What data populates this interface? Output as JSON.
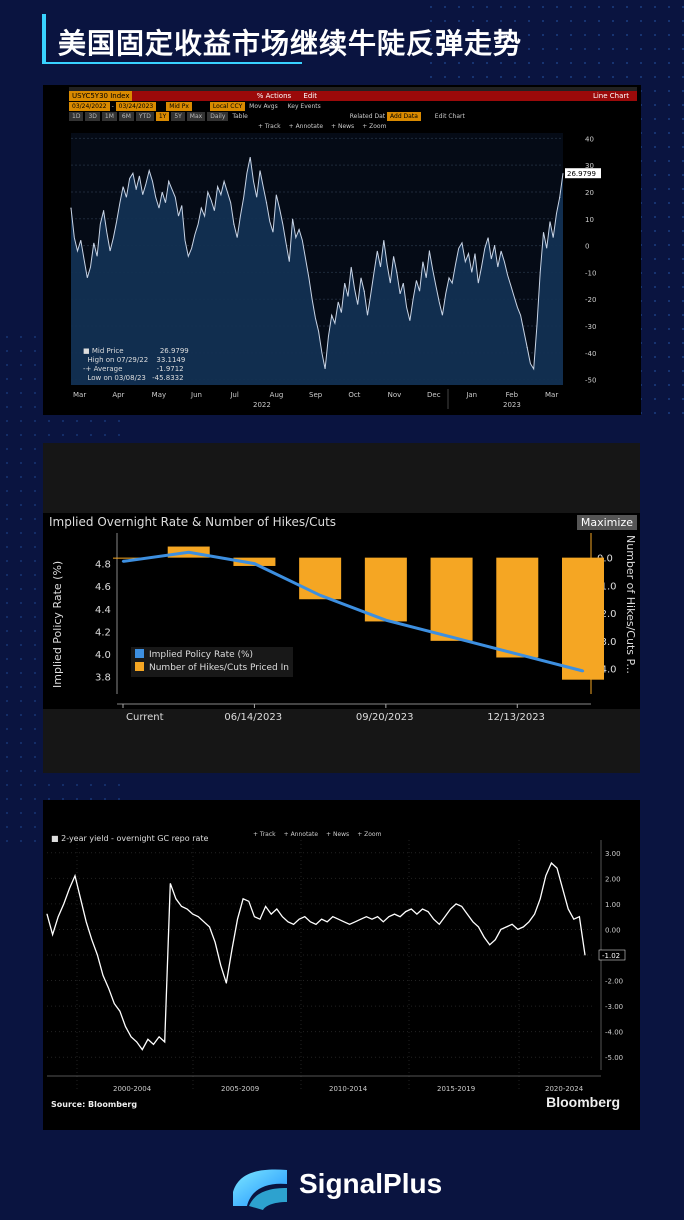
{
  "title": "美国固定收益市场继续牛陡反弹走势",
  "brand": "SignalPlus",
  "panel1": {
    "ticker": "USYC5Y30 Index",
    "actions": "% Actions",
    "edit": "Edit",
    "view": "Line Chart",
    "date_from": "03/24/2022",
    "date_to": "03/24/2023",
    "field": "Mid Px",
    "ccy": "Local CCY",
    "mov_avgs": "Mov Avgs",
    "key_events": "Key Events",
    "periods": [
      "1D",
      "3D",
      "1M",
      "6M",
      "YTD",
      "1Y",
      "5Y",
      "Max",
      "Daily"
    ],
    "table": "Table",
    "related": "Related Dat",
    "add_data": "Add Data",
    "edit_chart": "Edit Chart",
    "tools": [
      "Track",
      "Annotate",
      "News",
      "Zoom"
    ],
    "legend": {
      "mid": "Mid Price",
      "mid_val": "26.9799",
      "high": "High on 07/29/22",
      "high_val": "33.1149",
      "avg": "Average",
      "avg_val": "-1.9712",
      "low": "Low on 03/08/23",
      "low_val": "-45.8332"
    },
    "last_label": "26.9799",
    "years": [
      "2022",
      "2023"
    ]
  },
  "panel2": {
    "header": "Implied Overnight Rate & Number of Hikes/Cuts",
    "maximize": "Maximize",
    "ylabel_left": "Implied Policy Rate (%)",
    "ylabel_right": "Number of Hikes/Cuts P...",
    "legend_line": "Implied Policy Rate (%)",
    "legend_bar": "Number of Hikes/Cuts Priced In"
  },
  "panel3": {
    "series_label": "2-year yield - overnight GC repo rate",
    "tools": [
      "Track",
      "Annotate",
      "News",
      "Zoom"
    ],
    "source": "Source: Bloomberg",
    "logo": "Bloomberg",
    "last_label": "-1.02"
  },
  "colors": {
    "accent": "#39d2ff",
    "bbg_orange": "#f5a623",
    "bbg_blue": "#3d8fe0",
    "bg": "#0a1440"
  },
  "chart_data": [
    {
      "type": "area",
      "title": "USYC5Y30 Index",
      "x_ticks": [
        "Mar",
        "Apr",
        "May",
        "Jun",
        "Jul",
        "Aug",
        "Sep",
        "Oct",
        "Nov",
        "Dec",
        "Jan",
        "Feb",
        "Mar"
      ],
      "y_ticks": [
        40,
        30,
        20,
        10,
        0,
        -10,
        -20,
        -30,
        -40,
        -50
      ],
      "ylim": [
        -52,
        42
      ],
      "values": [
        14,
        3,
        -2,
        2,
        -5,
        -12,
        -8,
        1,
        -4,
        8,
        13,
        5,
        -2,
        3,
        9,
        16,
        22,
        18,
        25,
        27,
        21,
        26,
        19,
        23,
        28,
        24,
        18,
        14,
        20,
        16,
        24,
        21,
        18,
        11,
        15,
        2,
        -4,
        -1,
        4,
        8,
        14,
        11,
        20,
        17,
        13,
        22,
        19,
        24,
        20,
        16,
        8,
        3,
        11,
        18,
        27,
        33,
        24,
        18,
        28,
        22,
        16,
        9,
        5,
        19,
        14,
        8,
        1,
        -6,
        10,
        3,
        6,
        2,
        -5,
        -12,
        -20,
        -27,
        -32,
        -40,
        -46,
        -34,
        -26,
        -29,
        -21,
        -25,
        -14,
        -19,
        -8,
        -16,
        -22,
        -12,
        -17,
        -26,
        -18,
        -10,
        -2,
        -8,
        2,
        -7,
        -14,
        -4,
        -10,
        -18,
        -14,
        -23,
        -28,
        -20,
        -13,
        -17,
        -6,
        -12,
        -2,
        -9,
        -15,
        -21,
        -26,
        -18,
        -12,
        -14,
        -7,
        -1,
        1,
        -6,
        -3,
        -10,
        -3,
        -14,
        -8,
        -1,
        3,
        -5,
        0,
        -8,
        -2,
        -6,
        -11,
        -15,
        -19,
        -23,
        -26,
        -32,
        -38,
        -44,
        -46,
        -30,
        -10,
        5,
        -1,
        9,
        3,
        12,
        18,
        27
      ]
    },
    {
      "type": "bar",
      "categories": [
        "Current",
        "",
        "06/14/2023",
        "",
        "09/20/2023",
        "",
        "12/13/2023",
        ""
      ],
      "series": [
        {
          "name": "Implied Policy Rate (%)",
          "values": [
            4.82,
            4.9,
            4.8,
            4.52,
            4.3,
            4.15,
            4.0,
            3.85
          ]
        },
        {
          "name": "Number of Hikes/Cuts Priced In",
          "values": [
            0.0,
            0.4,
            -0.3,
            -1.5,
            -2.3,
            -3.0,
            -3.6,
            -4.4
          ]
        }
      ],
      "ylabel": "Implied Policy Rate (%)",
      "y2label": "Number of Hikes/Cuts P...",
      "ylim": [
        3.7,
        5.0
      ],
      "y2lim": [
        -4.7,
        0.6
      ],
      "y_ticks": [
        4.8,
        4.6,
        4.4,
        4.2,
        4.0,
        3.8
      ],
      "y2_ticks": [
        "0.0",
        "-1.0",
        "-2.0",
        "-3.0",
        "-4.0"
      ]
    },
    {
      "type": "line",
      "title": "2-year yield - overnight GC repo rate",
      "x_ticks": [
        "2000-2004",
        "2005-2009",
        "2010-2014",
        "2015-2019",
        "2020-2024"
      ],
      "y_ticks": [
        "3.00",
        "2.00",
        "1.00",
        "0.00",
        "-1.00",
        "-2.00",
        "-3.00",
        "-4.00",
        "-5.00"
      ],
      "ylim": [
        -5.5,
        3.5
      ],
      "values": [
        0.6,
        -0.2,
        0.5,
        1.0,
        1.6,
        2.1,
        1.2,
        0.3,
        -0.4,
        -1.0,
        -1.8,
        -2.3,
        -2.9,
        -3.2,
        -3.8,
        -4.2,
        -4.4,
        -4.7,
        -4.3,
        -4.5,
        -4.2,
        -4.4,
        1.8,
        1.2,
        0.9,
        0.8,
        0.6,
        0.5,
        0.3,
        0.1,
        -0.5,
        -1.4,
        -2.1,
        -0.8,
        0.4,
        1.2,
        1.1,
        0.5,
        0.4,
        0.9,
        0.6,
        0.8,
        0.5,
        0.3,
        0.2,
        0.4,
        0.5,
        0.3,
        0.2,
        0.4,
        0.3,
        0.5,
        0.4,
        0.3,
        0.2,
        0.3,
        0.4,
        0.5,
        0.4,
        0.5,
        0.3,
        0.5,
        0.6,
        0.5,
        0.7,
        0.8,
        0.6,
        0.8,
        0.7,
        0.4,
        0.2,
        0.5,
        0.8,
        1.0,
        0.9,
        0.6,
        0.3,
        0.1,
        -0.3,
        -0.6,
        -0.4,
        0.0,
        0.1,
        0.2,
        0.0,
        0.1,
        0.3,
        0.6,
        1.2,
        2.1,
        2.6,
        2.4,
        1.6,
        0.8,
        0.4,
        0.5,
        -1.0
      ]
    }
  ]
}
